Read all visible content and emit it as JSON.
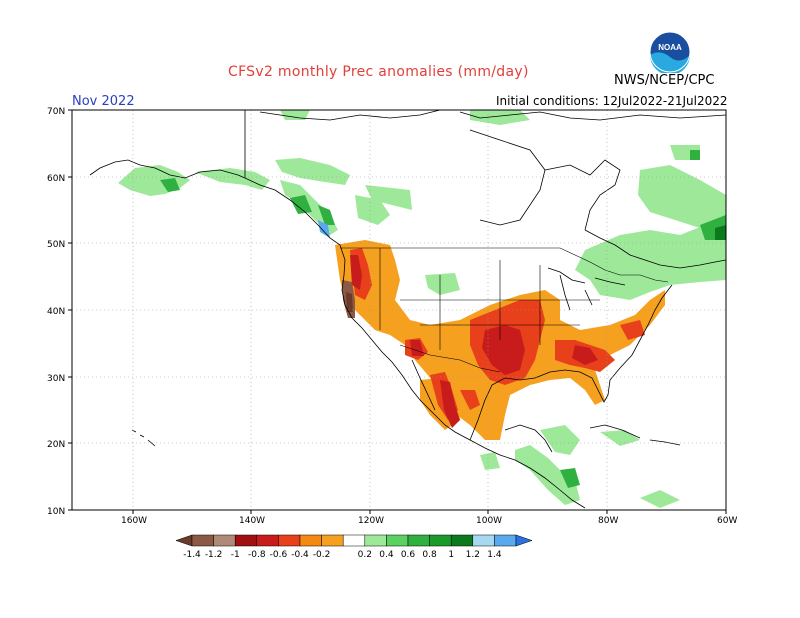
{
  "header": {
    "title": "CFSv2 monthly Prec anomalies (mm/day)",
    "agency": "NWS/NCEP/CPC",
    "month": "Nov 2022",
    "initial_conditions": "Initial conditions: 12Jul2022-21Jul2022",
    "logo_text": "NOAA"
  },
  "axes": {
    "lat_labels": [
      "70N",
      "60N",
      "50N",
      "40N",
      "30N",
      "20N",
      "10N"
    ],
    "lon_labels": [
      "160W",
      "140W",
      "120W",
      "100W",
      "80W",
      "60W"
    ]
  },
  "colorbar": {
    "labels": [
      "-1.4",
      "-1.2",
      "-1",
      "-0.8",
      "-0.6",
      "-0.4",
      "-0.2",
      "0.2",
      "0.4",
      "0.6",
      "0.8",
      "1",
      "1.2",
      "1.4"
    ],
    "colors": [
      "#6b3a2a",
      "#8c5a44",
      "#b08a78",
      "#a01010",
      "#c81c1c",
      "#e8401a",
      "#f58a12",
      "#f6a020",
      "#ffffff",
      "#9ee89a",
      "#5cd060",
      "#2fb040",
      "#199a2a",
      "#0c7a1c",
      "#a8d8f0",
      "#5aa8ee",
      "#2a70e0"
    ]
  }
}
